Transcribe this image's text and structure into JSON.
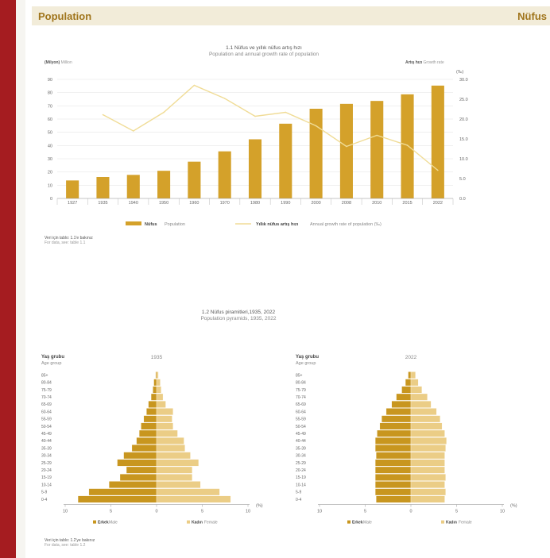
{
  "header": {
    "left_title": "Population",
    "right_title": "Nüfus"
  },
  "chart_data": [
    {
      "type": "bar",
      "title": "1.1 Nüfus ve yıllık nüfus artış hızı",
      "subtitle": "Population and annual growth rate of population",
      "left_axis_label_tr": "(Milyon)",
      "left_axis_label_en": "Million",
      "right_axis_label_tr": "Artış hızı",
      "right_axis_label_en": "Growth rate",
      "right_axis_unit": "(‰)",
      "categories": [
        "1927",
        "1935",
        "1940",
        "1950",
        "1960",
        "1970",
        "1980",
        "1990",
        "2000",
        "2008",
        "2010",
        "2015",
        "2022"
      ],
      "ylim": [
        0,
        90
      ],
      "yticks": [
        0,
        10,
        20,
        30,
        40,
        50,
        60,
        70,
        80,
        90
      ],
      "y2lim": [
        0,
        30
      ],
      "y2ticks": [
        "0.0",
        "5.0",
        "10.0",
        "15.0",
        "20.0",
        "25.0",
        "30.0"
      ],
      "series": [
        {
          "name": "Nüfus",
          "name_en": "Population",
          "type": "bar",
          "color": "#d4a12a",
          "values": [
            13.6,
            16.2,
            17.8,
            20.9,
            27.8,
            35.6,
            44.7,
            56.5,
            67.8,
            71.5,
            73.7,
            78.7,
            85.3
          ]
        },
        {
          "name": "Yıllık nüfus artış hızı",
          "name_en": "Annual growth rate of population (‰)",
          "type": "line",
          "color": "#f0dc96",
          "values": [
            null,
            21.1,
            17.0,
            21.7,
            28.5,
            25.2,
            20.7,
            21.7,
            18.3,
            13.1,
            15.9,
            13.4,
            7.1
          ]
        }
      ],
      "note_tr": "Veri için tablo: 1.1'e bakınız",
      "note_en": "For data, see: table 1.1"
    },
    {
      "type": "bar",
      "title": "1.2 Nüfus piramitleri,1935, 2022",
      "subtitle": "Population pyramids, 1935, 2022",
      "axis_label_tr": "Yaş grubu",
      "axis_label_en": "Age group",
      "unit": "(%)",
      "xticks": [
        "10",
        "5",
        "0",
        "5",
        "10"
      ],
      "age_groups": [
        "0-4",
        "5-9",
        "10-14",
        "15-19",
        "20-24",
        "25-29",
        "30-34",
        "35-39",
        "40-44",
        "45-49",
        "50-54",
        "55-59",
        "60-64",
        "65-69",
        "70-74",
        "75-79",
        "80-84",
        "85+"
      ],
      "legend": {
        "male_tr": "Erkek",
        "male_en": "Male",
        "female_tr": "Kadın",
        "female_en": "Female"
      },
      "colors": {
        "male": "#c8961f",
        "female": "#ebcd86"
      },
      "pyramids": [
        {
          "year": "1935",
          "male": [
            8.6,
            7.4,
            5.2,
            4.0,
            3.3,
            4.3,
            3.6,
            2.7,
            2.2,
            1.9,
            1.7,
            1.4,
            1.1,
            0.9,
            0.6,
            0.4,
            0.3,
            0.1
          ],
          "female": [
            8.1,
            6.9,
            4.8,
            3.9,
            3.9,
            4.6,
            3.7,
            3.1,
            3.0,
            2.3,
            1.8,
            1.7,
            1.8,
            1.0,
            0.7,
            0.5,
            0.4,
            0.2
          ]
        },
        {
          "year": "2022",
          "male": [
            3.8,
            3.9,
            3.9,
            3.9,
            3.9,
            3.9,
            3.8,
            3.9,
            3.9,
            3.7,
            3.4,
            3.2,
            2.7,
            2.1,
            1.6,
            1.0,
            0.6,
            0.3
          ],
          "female": [
            3.7,
            3.8,
            3.7,
            3.8,
            3.7,
            3.7,
            3.7,
            3.8,
            3.9,
            3.7,
            3.4,
            3.2,
            2.8,
            2.2,
            1.8,
            1.2,
            0.8,
            0.5
          ]
        }
      ],
      "note_tr": "Veri için tablo: 1.2'ye bakınız",
      "note_en": "For data, see: table 1.2"
    }
  ]
}
